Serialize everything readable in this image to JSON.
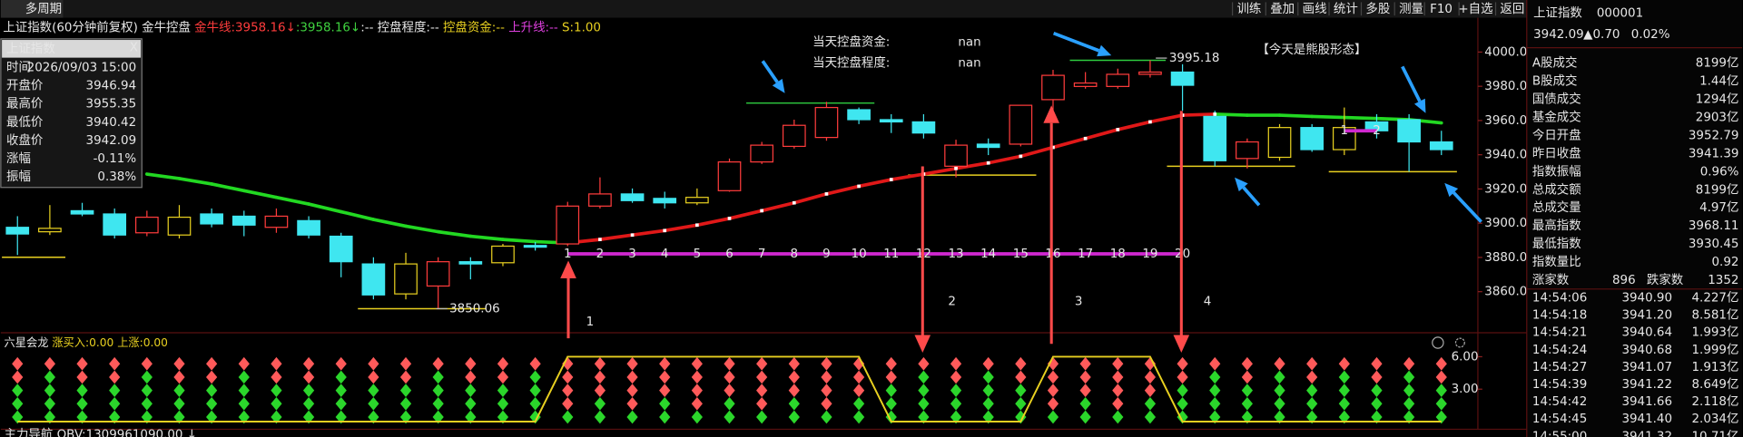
{
  "toolbar": {
    "tab": "多周期",
    "buttons": [
      "训练",
      "叠加",
      "画线",
      "统计",
      "多股",
      "测量",
      "F10",
      "+自选",
      "返回"
    ]
  },
  "header": {
    "parts": [
      {
        "text": "上证指数(60分钟前复权)",
        "color": "#e6e6e6"
      },
      {
        "text": " 金牛控盘 ",
        "color": "#e6e6e6"
      },
      {
        "text": "金牛线:3958.16↓",
        "color": "#ff3c3c"
      },
      {
        "text": ":3958.16↓",
        "color": "#3fd23f"
      },
      {
        "text": ":-- 控盘程度:-- ",
        "color": "#e6e6e6"
      },
      {
        "text": "控盘资金:-- ",
        "color": "#e8d020"
      },
      {
        "text": "上升线:-- ",
        "color": "#e040e0"
      },
      {
        "text": "S:1.00",
        "color": "#e8d020"
      }
    ]
  },
  "info_box": {
    "title": "上证指数",
    "close": "X",
    "rows": [
      {
        "label": "时间",
        "value": "2026/09/03 15:00",
        "color": "#e6e6e6"
      },
      {
        "label": "开盘价",
        "value": "3946.94",
        "color": "#ff3c3c"
      },
      {
        "label": "最高价",
        "value": "3955.35",
        "color": "#ff3c3c"
      },
      {
        "label": "最低价",
        "value": "3940.42",
        "color": "#3fd23f"
      },
      {
        "label": "收盘价",
        "value": "3942.09",
        "color": "#3fd23f"
      },
      {
        "label": "涨幅",
        "value": "-0.11%",
        "color": "#3fd23f"
      },
      {
        "label": "振幅",
        "value": "0.38%",
        "color": "#ff3c3c"
      }
    ]
  },
  "chart_data": [
    {
      "type": "candlestick",
      "ylim": [
        3836,
        4019.4
      ],
      "yticks": [
        {
          "value": 3860,
          "label": "3860.00"
        },
        {
          "value": 3880,
          "label": "3880.00"
        },
        {
          "value": 3900,
          "label": "3900.00"
        },
        {
          "value": 3920,
          "label": "3920.00"
        },
        {
          "value": 3940,
          "label": "3940.00"
        },
        {
          "value": 3960,
          "label": "3960.00"
        },
        {
          "value": 3980,
          "label": "3980.00"
        },
        {
          "value": 4000,
          "label": "4000.00"
        }
      ],
      "open": [
        3897.6,
        3897.0,
        3907.3,
        3905.4,
        3894.4,
        3903.5,
        3905.4,
        3904.1,
        3897.6,
        3901.5,
        3892.4,
        3876.2,
        3876.2,
        3863.3,
        3877.5,
        3886.6,
        3887.0,
        3887.9,
        3910.0,
        3917.1,
        3914.5,
        3915.1,
        3919.0,
        3935.8,
        3944.9,
        3950.1,
        3966.3,
        3960.5,
        3959.2,
        3933.3,
        3946.2,
        3946.2,
        3972.2,
        3979.9,
        3979.9,
        3987.0,
        3988.3,
        3962.4,
        3937.8,
        3955.9,
        3955.9,
        3955.9,
        3959.2,
        3960.5,
        3947.5
      ],
      "high": [
        3904.1,
        3910.6,
        3911.9,
        3908.6,
        3907.3,
        3910.6,
        3908.6,
        3907.3,
        3908.6,
        3904.1,
        3894.4,
        3880.1,
        3882.7,
        3880.1,
        3880.1,
        3887.9,
        3889.0,
        3912.5,
        3926.8,
        3920.3,
        3918.4,
        3920.3,
        3937.8,
        3947.5,
        3960.5,
        3970.9,
        3967.6,
        3963.7,
        3963.7,
        3948.8,
        3949.5,
        3968.9,
        3989.6,
        3988.3,
        3990.3,
        3995.18,
        3992.9,
        3965.7,
        3949.5,
        3957.9,
        3957.9,
        3967.6,
        3963.7,
        3963.7,
        3954.0
      ],
      "low": [
        3881.4,
        3893.1,
        3904.1,
        3891.1,
        3892.4,
        3891.1,
        3897.6,
        3892.4,
        3894.4,
        3891.1,
        3868.4,
        3855.5,
        3855.5,
        3850.06,
        3867.2,
        3874.9,
        3884.0,
        3886.6,
        3908.6,
        3911.9,
        3908.6,
        3910.6,
        3918.4,
        3934.6,
        3943.6,
        3948.2,
        3957.9,
        3952.7,
        3949.5,
        3926.8,
        3939.8,
        3944.9,
        3965.7,
        3978.6,
        3978.6,
        3985.1,
        3965.7,
        3933.3,
        3932.0,
        3936.5,
        3941.7,
        3939.8,
        3949.5,
        3930.1,
        3939.8
      ],
      "close": [
        3893.7,
        3895.0,
        3905.4,
        3893.1,
        3903.5,
        3893.1,
        3899.6,
        3898.9,
        3904.1,
        3893.1,
        3877.5,
        3858.1,
        3858.7,
        3877.5,
        3876.2,
        3876.9,
        3886.0,
        3910.0,
        3917.1,
        3913.2,
        3911.9,
        3911.9,
        3935.8,
        3945.6,
        3957.2,
        3967.6,
        3960.5,
        3959.2,
        3952.7,
        3945.6,
        3944.3,
        3968.9,
        3986.4,
        3981.9,
        3987.0,
        3988.3,
        3980.6,
        3936.5,
        3947.5,
        3938.5,
        3943.0,
        3943.0,
        3954.0,
        3947.5,
        3943.0
      ],
      "down_color": "#3fe6f0",
      "colors": [
        "#3fe6f0",
        "#e8d020",
        "#3fe6f0",
        "#3fe6f0",
        "#ff3c3c",
        "#e8d020",
        "#3fe6f0",
        "#3fe6f0",
        "#ff3c3c",
        "#3fe6f0",
        "#3fe6f0",
        "#3fe6f0",
        "#e8d020",
        "#ff3c3c",
        "#3fe6f0",
        "#e8d020",
        "#3fe6f0",
        "#ff3c3c",
        "#ff3c3c",
        "#3fe6f0",
        "#3fe6f0",
        "#e8d020",
        "#ff3c3c",
        "#ff3c3c",
        "#ff3c3c",
        "#ff3c3c",
        "#3fe6f0",
        "#3fe6f0",
        "#3fe6f0",
        "#ff3c3c",
        "#3fe6f0",
        "#ff3c3c",
        "#ff3c3c",
        "#ff3c3c",
        "#ff3c3c",
        "#ff3c3c",
        "#3fe6f0",
        "#3fe6f0",
        "#ff3c3c",
        "#e8d020",
        "#3fe6f0",
        "#e8d020",
        "#3fe6f0",
        "#3fe6f0",
        "#3fe6f0"
      ],
      "ma": [
        null,
        null,
        null,
        null,
        3928.7,
        3926.1,
        3922.9,
        3919.0,
        3915.1,
        3911.2,
        3906.7,
        3902.2,
        3898.3,
        3895.0,
        3892.4,
        3890.5,
        3889.2,
        3888.5,
        3890.5,
        3893.1,
        3895.7,
        3898.9,
        3902.8,
        3907.3,
        3911.9,
        3917.1,
        3921.6,
        3925.5,
        3928.7,
        3932.0,
        3935.2,
        3939.1,
        3944.3,
        3949.5,
        3954.7,
        3959.2,
        3963.1,
        3963.7,
        3963.1,
        3963.1,
        3962.4,
        3961.8,
        3961.2,
        3960.5,
        3958.6
      ],
      "ma_up_color": "#e01818",
      "ma_down_color": "#22d822",
      "sequence": {
        "color": "#d028d0",
        "values": [
          null,
          null,
          null,
          null,
          null,
          null,
          null,
          null,
          null,
          null,
          null,
          null,
          null,
          null,
          null,
          null,
          null,
          3882.1,
          3882.1,
          3882.1,
          3882.1,
          3882.1,
          3882.1,
          3882.1,
          3882.1,
          3882.1,
          3882.1,
          3882.1,
          3882.1,
          3882.1,
          3882.1,
          3882.1,
          3882.1,
          3882.1,
          3882.1,
          3882.1,
          3882.1,
          null,
          null,
          null,
          null,
          null,
          null,
          null,
          null
        ],
        "labels": [
          null,
          null,
          null,
          null,
          null,
          null,
          null,
          null,
          null,
          null,
          null,
          null,
          null,
          null,
          null,
          null,
          null,
          1,
          2,
          3,
          4,
          5,
          6,
          7,
          8,
          9,
          10,
          11,
          12,
          13,
          14,
          15,
          16,
          17,
          18,
          19,
          20,
          null,
          null,
          null,
          null,
          null,
          null,
          null,
          null
        ]
      },
      "sequence2": {
        "color": "#d028d0",
        "values": [
          null,
          null,
          null,
          null,
          null,
          null,
          null,
          null,
          null,
          null,
          null,
          null,
          null,
          null,
          null,
          null,
          null,
          null,
          null,
          null,
          null,
          null,
          null,
          null,
          null,
          null,
          null,
          null,
          null,
          null,
          null,
          null,
          null,
          null,
          null,
          null,
          null,
          null,
          null,
          null,
          null,
          3954.0,
          3954.0,
          null,
          null
        ],
        "labels": [
          null,
          null,
          null,
          null,
          null,
          null,
          null,
          null,
          null,
          null,
          null,
          null,
          null,
          null,
          null,
          null,
          null,
          null,
          null,
          null,
          null,
          null,
          null,
          null,
          null,
          null,
          null,
          null,
          null,
          null,
          null,
          null,
          null,
          null,
          null,
          null,
          null,
          null,
          null,
          null,
          null,
          1,
          2,
          null,
          null
        ]
      },
      "levels": [
        {
          "value": 3880.1,
          "from": 0,
          "to": 1,
          "color": "#e8d020"
        },
        {
          "value": 3970.2,
          "from": 23,
          "to": 26,
          "color": "#2ecc40"
        },
        {
          "value": 3995.18,
          "from": 33,
          "to": 35,
          "color": "#2ecc40"
        },
        {
          "value": 3928.1,
          "from": 28,
          "to": 31,
          "color": "#e8d020"
        },
        {
          "value": 3933.3,
          "from": 36,
          "to": 39,
          "color": "#e8d020"
        },
        {
          "value": 3930.1,
          "from": 41,
          "to": 44,
          "color": "#e8d020"
        },
        {
          "value": 3850.06,
          "from": 11,
          "to": 14,
          "color": "#e8d020"
        }
      ],
      "extremes": [
        3995.18,
        3850.06
      ],
      "control": [
        {
          "label": "当天控盘资金:",
          "value": "nan"
        },
        {
          "label": "当天控盘程度:",
          "value": "nan"
        }
      ],
      "pattern": "【今天是熊股形态】",
      "signals": [
        1,
        2,
        3,
        4
      ]
    },
    {
      "type": "indicator",
      "parts": [
        {
          "text": "六星会龙 ",
          "color": "#e6e6e6"
        },
        {
          "text": "涨买入:0.00 ",
          "color": "#e8d020"
        },
        {
          "text": "上涨:0.00",
          "color": "#e8d020"
        }
      ],
      "ylim": [
        -0.4,
        7.5
      ],
      "yticks": [
        {
          "value": 3,
          "label": "3.00"
        },
        {
          "value": 6,
          "label": "6.00"
        }
      ],
      "values": [
        0,
        0,
        0,
        0,
        0,
        0,
        0,
        0,
        0,
        0,
        0,
        0,
        0,
        0,
        0,
        0,
        0,
        6,
        6,
        6,
        6,
        6,
        6,
        6,
        6,
        6,
        6,
        0,
        0,
        0,
        0,
        0,
        6,
        6,
        6,
        6,
        0,
        0,
        0,
        0,
        0,
        0,
        0,
        0,
        0
      ],
      "color": "#e8d020",
      "red_counts": [
        2,
        1,
        2,
        2,
        1,
        2,
        2,
        1,
        2,
        2,
        1,
        2,
        2,
        1,
        2,
        2,
        1,
        4,
        3,
        4,
        3,
        4,
        3,
        4,
        3,
        4,
        3,
        2,
        1,
        2,
        1,
        2,
        4,
        3,
        4,
        3,
        2,
        1,
        2,
        1,
        2,
        1,
        2,
        1,
        2
      ]
    }
  ],
  "footer": "主力导航 OBV:1309961090.00 ↓",
  "side_panel": {
    "name": "上证指数",
    "code": "000001",
    "price": "3942.09",
    "change": "▲0.70",
    "pct": "0.02%",
    "rows": [
      {
        "label": "A股成交",
        "value": "8199亿",
        "color": "#e8d020"
      },
      {
        "label": "B股成交",
        "value": "1.44亿",
        "color": "#e8d020"
      },
      {
        "label": "国债成交",
        "value": "1294亿",
        "color": "#e8d020"
      },
      {
        "label": "基金成交",
        "value": "2903亿",
        "color": "#e8d020"
      },
      {
        "label": "今日开盘",
        "value": "3952.79",
        "color": "#ff3c3c"
      },
      {
        "label": "昨日收盘",
        "value": "3941.39",
        "color": "#e6e6e6"
      },
      {
        "label": "指数振幅",
        "value": "0.96%",
        "color": "#e6e6e6"
      },
      {
        "label": "总成交额",
        "value": "8199亿",
        "color": "#e8d020"
      },
      {
        "label": "总成交量",
        "value": "4.97亿",
        "color": "#e8d020"
      },
      {
        "label": "最高指数",
        "value": "3968.11",
        "color": "#ff3c3c"
      },
      {
        "label": "最低指数",
        "value": "3930.45",
        "color": "#3fd23f"
      },
      {
        "label": "指数量比",
        "value": "0.92",
        "color": "#3fd23f"
      }
    ],
    "breadth": {
      "up_label": "涨家数",
      "up": 896,
      "down_label": "跌家数",
      "down": 1352
    },
    "trades": [
      {
        "time": "14:54:06",
        "price": "3940.90",
        "amount": "4.227亿",
        "color": "#3fd23f"
      },
      {
        "time": "14:54:18",
        "price": "3941.20",
        "amount": "8.581亿",
        "color": "#3fd23f"
      },
      {
        "time": "14:54:21",
        "price": "3940.64",
        "amount": "1.993亿",
        "color": "#3fd23f"
      },
      {
        "time": "14:54:24",
        "price": "3940.68",
        "amount": "1.999亿",
        "color": "#3fd23f"
      },
      {
        "time": "14:54:27",
        "price": "3941.07",
        "amount": "1.913亿",
        "color": "#3fd23f"
      },
      {
        "time": "14:54:39",
        "price": "3941.22",
        "amount": "8.649亿",
        "color": "#3fd23f"
      },
      {
        "time": "14:54:42",
        "price": "3941.66",
        "amount": "2.118亿",
        "color": "#ff3c3c"
      },
      {
        "time": "14:54:45",
        "price": "3941.40",
        "amount": "2.034亿",
        "color": "#ff3c3c"
      },
      {
        "time": "14:55:00",
        "price": "3941.32",
        "amount": "10.71亿",
        "color": "#3fd23f"
      }
    ]
  }
}
